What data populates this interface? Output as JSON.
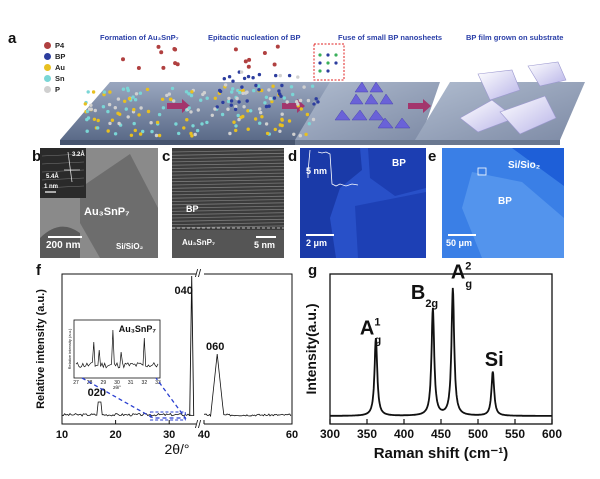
{
  "panel_a": {
    "label": "a",
    "legend": [
      {
        "sym": "P4",
        "color": "#b04040"
      },
      {
        "sym": "BP",
        "color": "#2c3d9e"
      },
      {
        "sym": "Au",
        "color": "#e8c020"
      },
      {
        "sym": "Sn",
        "color": "#7ad6d6"
      },
      {
        "sym": "P",
        "color": "#d0d0d0"
      }
    ],
    "steps": [
      "Formation of Au₃SnP₇",
      "Epitactic nucleation of BP",
      "Fuse of small BP nanosheets",
      "BP film grown on substrate"
    ]
  },
  "panel_b": {
    "label": "b",
    "d1": "3.2Å",
    "d2": "5.4Å",
    "inset_scale": "1 nm",
    "crystal": "Au₃SnP₇",
    "scale": "200 nm",
    "substrate": "Si/SiO₂"
  },
  "panel_c": {
    "label": "c",
    "bp": "BP",
    "crystal": "Au₃SnP₇",
    "scale": "5 nm"
  },
  "panel_d": {
    "label": "d",
    "height": "5 nm",
    "bp": "BP",
    "scale": "2 μm"
  },
  "panel_e": {
    "label": "e",
    "substrate": "Si/Sio₂",
    "bp": "BP",
    "scale": "50 μm"
  },
  "chart_data": [
    {
      "panel": "f",
      "type": "line",
      "ylabel": "Relative intensity (a.u.)",
      "xlabel": "2θ/°",
      "x_ticks": [
        "10",
        "20",
        "30",
        "40",
        "60"
      ],
      "peak_labels": [
        "020",
        "040",
        "060"
      ],
      "inset": {
        "title": "Au₃SnP₇",
        "ylabel": "Relative intensity (a.u.)",
        "xlabel": "2θ/°",
        "x_ticks": [
          "27",
          "28",
          "29",
          "30",
          "31",
          "32",
          "33"
        ]
      }
    },
    {
      "panel": "g",
      "type": "line",
      "ylabel": "Intensity(a.u.)",
      "xlabel": "Raman shift (cm⁻¹)",
      "xlim": [
        300,
        600
      ],
      "x_ticks": [
        "300",
        "350",
        "400",
        "450",
        "500",
        "550",
        "600"
      ],
      "peaks": [
        {
          "name": "A",
          "sup": "1",
          "sub": "g",
          "x": 362,
          "height": 0.58
        },
        {
          "name": "B",
          "sup": "",
          "sub": "2g",
          "x": 439,
          "height": 0.8
        },
        {
          "name": "A",
          "sup": "2",
          "sub": "g",
          "x": 466,
          "height": 0.95
        },
        {
          "name": "Si",
          "sup": "",
          "sub": "",
          "x": 520,
          "height": 0.33
        }
      ]
    }
  ]
}
